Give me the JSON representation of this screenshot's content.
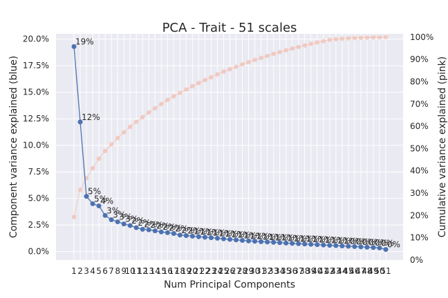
{
  "chart_data": {
    "type": "line",
    "title": "PCA - Trait - 51 scales",
    "xlabel": "Num Principal Components",
    "ylabel_left": "Component variance explained (blue)",
    "ylabel_right": "Cumulative variance explained (pink)",
    "x": [
      1,
      2,
      3,
      4,
      5,
      6,
      7,
      8,
      9,
      10,
      11,
      12,
      13,
      14,
      15,
      16,
      17,
      18,
      19,
      20,
      21,
      22,
      23,
      24,
      25,
      26,
      27,
      28,
      29,
      30,
      31,
      32,
      33,
      34,
      35,
      36,
      37,
      38,
      39,
      40,
      41,
      42,
      43,
      44,
      45,
      46,
      47,
      48,
      49,
      50,
      51
    ],
    "xticks": [
      "1",
      "2",
      "3",
      "4",
      "5",
      "6",
      "7",
      "8",
      "9",
      "10",
      "11",
      "12",
      "13",
      "14",
      "15",
      "16",
      "17",
      "18",
      "19",
      "20",
      "21",
      "22",
      "23",
      "24",
      "25",
      "26",
      "27",
      "28",
      "29",
      "30",
      "31",
      "32",
      "33",
      "34",
      "35",
      "36",
      "37",
      "38",
      "39",
      "40",
      "41",
      "42",
      "43",
      "44",
      "45",
      "46",
      "47",
      "48",
      "49",
      "50",
      "51"
    ],
    "ylim_left": [
      -0.8,
      20.5
    ],
    "yticks_left": [
      0,
      2.5,
      5,
      7.5,
      10,
      12.5,
      15,
      17.5,
      20
    ],
    "yticklabels_left": [
      "0.0%",
      "2.5%",
      "5.0%",
      "7.5%",
      "10.0%",
      "12.5%",
      "15.0%",
      "17.5%",
      "20.0%"
    ],
    "ylim_right": [
      0,
      101.5
    ],
    "yticks_right": [
      0,
      10,
      20,
      30,
      40,
      50,
      60,
      70,
      80,
      90,
      100
    ],
    "yticklabels_right": [
      "0%",
      "10%",
      "20%",
      "30%",
      "40%",
      "50%",
      "60%",
      "70%",
      "80%",
      "90%",
      "100%"
    ],
    "grid": true,
    "series": [
      {
        "axis": "left",
        "color": "#4c72b0",
        "values": [
          19.3,
          12.2,
          5.2,
          4.5,
          4.3,
          3.4,
          3.0,
          2.8,
          2.6,
          2.45,
          2.25,
          2.1,
          2.05,
          1.95,
          1.85,
          1.78,
          1.7,
          1.55,
          1.5,
          1.45,
          1.4,
          1.35,
          1.3,
          1.25,
          1.2,
          1.15,
          1.1,
          1.05,
          1.0,
          0.97,
          0.93,
          0.9,
          0.87,
          0.84,
          0.8,
          0.77,
          0.74,
          0.71,
          0.68,
          0.65,
          0.62,
          0.59,
          0.56,
          0.53,
          0.5,
          0.47,
          0.44,
          0.41,
          0.38,
          0.34,
          0.2
        ],
        "labels": [
          "19%",
          "12%",
          "5%",
          "5%",
          "4%",
          "3%",
          "3%",
          "3%",
          "3%",
          "2%",
          "2%",
          "2%",
          "2%",
          "2%",
          "2%",
          "2%",
          "2%",
          "2%",
          "2%",
          "1%",
          "1%",
          "1%",
          "1%",
          "1%",
          "1%",
          "1%",
          "1%",
          "1%",
          "1%",
          "1%",
          "1%",
          "1%",
          "1%",
          "1%",
          "1%",
          "1%",
          "1%",
          "1%",
          "1%",
          "1%",
          "1%",
          "1%",
          "1%",
          "1%",
          "0%",
          "0%",
          "0%",
          "0%",
          "0%",
          "0%",
          "0%"
        ]
      },
      {
        "axis": "right",
        "color": "#f2b8a6",
        "values": [
          19.3,
          31.5,
          36.7,
          41.2,
          45.5,
          48.9,
          51.9,
          54.7,
          57.3,
          59.8,
          62.0,
          64.1,
          66.2,
          68.1,
          70.0,
          71.8,
          73.5,
          75.0,
          76.5,
          78.0,
          79.4,
          80.7,
          82.0,
          83.3,
          84.5,
          85.6,
          86.7,
          87.8,
          88.8,
          89.8,
          90.7,
          91.6,
          92.5,
          93.3,
          94.1,
          94.9,
          95.6,
          96.3,
          97.0,
          97.6,
          98.2,
          98.8,
          99.1,
          99.3,
          99.5,
          99.6,
          99.7,
          99.8,
          99.85,
          99.9,
          100.0
        ]
      }
    ]
  }
}
